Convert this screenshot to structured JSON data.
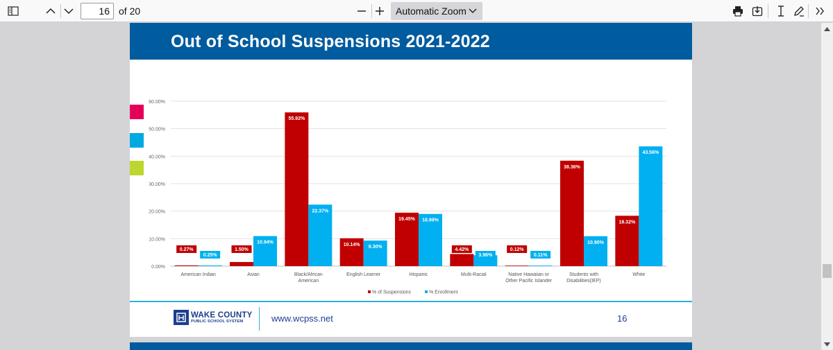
{
  "toolbar": {
    "page_number": "16",
    "page_of": "of 20",
    "zoom_label": "Automatic Zoom",
    "icons": [
      "sidebar-toggle-icon",
      "chevron-up-icon",
      "chevron-down-icon",
      "minus-icon",
      "plus-icon",
      "print-icon",
      "download-icon",
      "text-cursor-icon",
      "pen-icon",
      "double-chevron-right-icon"
    ]
  },
  "slide": {
    "title": "Out of School Suspensions 2021-2022",
    "header_color": "#005b9f",
    "swatches": [
      "#e5005a",
      "#00a9e0",
      "#bfd630"
    ],
    "logo_line1": "WAKE COUNTY",
    "logo_line2": "PUBLIC SCHOOL SYSTEM",
    "url": "www.wcpss.net",
    "page": "16"
  },
  "chart_data": {
    "type": "bar",
    "categories": [
      [
        "American Indian"
      ],
      [
        "Asian"
      ],
      [
        "Black/African",
        "American"
      ],
      [
        "English Learner"
      ],
      [
        "Hispanic"
      ],
      [
        "Multi-Racial"
      ],
      [
        "Native Hawaiian or",
        "Other Pacific Islander"
      ],
      [
        "Students with",
        "Disabilities(IEP)"
      ],
      [
        "White"
      ]
    ],
    "series": [
      {
        "name": "% of Suspensions",
        "color": "#c00000",
        "values": [
          0.27,
          1.5,
          55.92,
          10.14,
          19.45,
          4.42,
          0.12,
          38.36,
          18.32
        ],
        "labels": [
          "0.27%",
          "1.50%",
          "55.92%",
          "10.14%",
          "19.45%",
          "4.42%",
          "0.12%",
          "38.36%",
          "18.32%"
        ]
      },
      {
        "name": "% Enrollment",
        "color": "#00b0f0",
        "values": [
          0.25,
          10.94,
          22.37,
          9.3,
          18.99,
          3.96,
          0.11,
          10.9,
          43.56
        ],
        "labels": [
          "0.25%",
          "10.94%",
          "22.37%",
          "9.30%",
          "18.99%",
          "3.96%",
          "0.11%",
          "10.90%",
          "43.56%"
        ]
      }
    ],
    "y_ticks": [
      "0.00%",
      "10.00%",
      "20.00%",
      "30.00%",
      "40.00%",
      "50.00%",
      "60.00%"
    ],
    "ylim": [
      0,
      60
    ],
    "grid": true,
    "legend_position": "bottom"
  }
}
